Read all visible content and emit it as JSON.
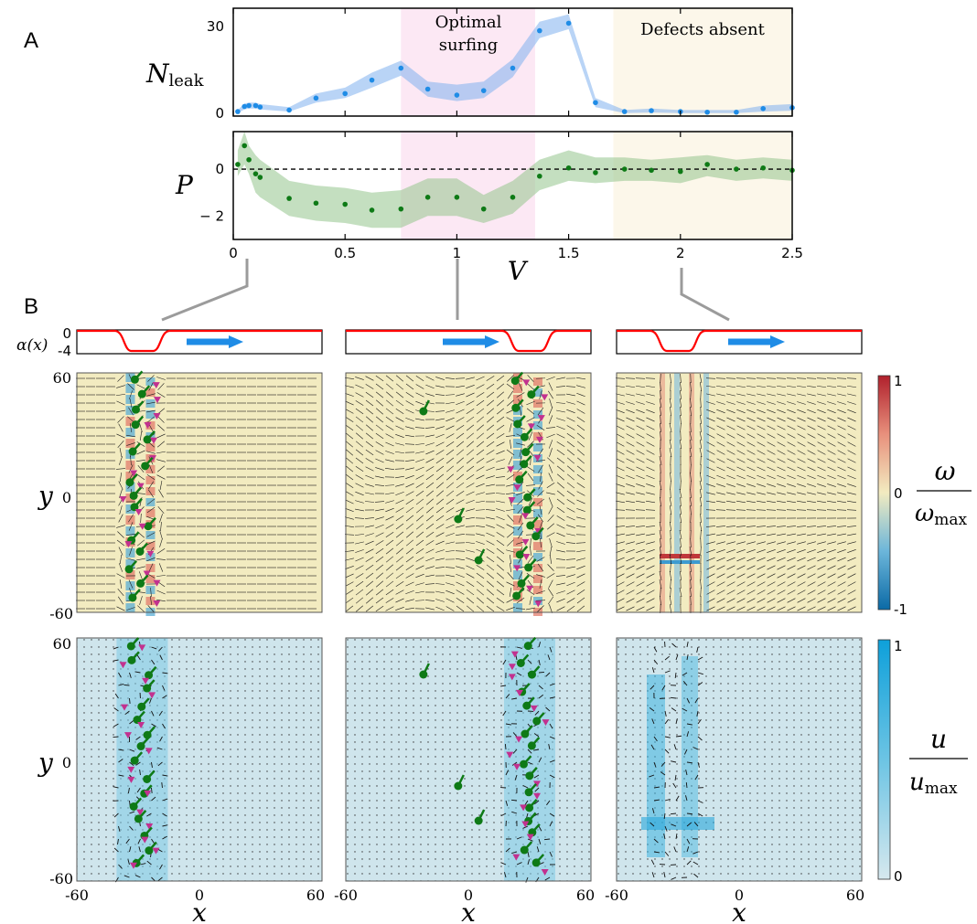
{
  "panel_labels": {
    "a": "A",
    "b": "B"
  },
  "chart_data": [
    {
      "type": "scatter",
      "panel": "A-top",
      "ylabel_main": "N",
      "ylabel_sub": "leak",
      "ylim": [
        -1,
        35
      ],
      "yticks": [
        "0",
        "30"
      ],
      "point_color": "#1f8ce6",
      "band_color": "#7fb0ee",
      "x": [
        0.02,
        0.05,
        0.07,
        0.1,
        0.12,
        0.25,
        0.37,
        0.5,
        0.62,
        0.75,
        0.87,
        1.0,
        1.12,
        1.25,
        1.37,
        1.5,
        1.62,
        1.75,
        1.87,
        2.0,
        2.12,
        2.25,
        2.37,
        2.5
      ],
      "y": [
        0.5,
        2.2,
        2.5,
        2.5,
        2.0,
        1.0,
        5.0,
        6.5,
        11.0,
        15.0,
        8.0,
        6.0,
        7.5,
        15.0,
        27.5,
        30.0,
        3.5,
        0.5,
        0.8,
        0.5,
        0.3,
        0.3,
        1.5,
        1.8
      ],
      "band_low": [
        0.0,
        1.2,
        1.5,
        1.5,
        1.2,
        0.5,
        3.5,
        5.0,
        8.5,
        12.5,
        5.5,
        4.0,
        5.0,
        12.0,
        25.0,
        28.0,
        2.0,
        0.0,
        0.2,
        0.0,
        0.0,
        0.0,
        0.5,
        0.8
      ],
      "band_high": [
        1.0,
        3.2,
        3.5,
        3.5,
        3.0,
        2.0,
        6.5,
        8.5,
        13.5,
        17.5,
        10.5,
        9.5,
        10.5,
        18.0,
        30.5,
        33.0,
        5.0,
        1.0,
        1.5,
        1.0,
        1.0,
        1.0,
        2.5,
        3.0
      ],
      "regions": [
        {
          "label_line1": "Optimal",
          "label_line2": "surfing",
          "x0": 0.75,
          "x1": 1.35,
          "color": "#fce8f4"
        },
        {
          "label_line1": "Defects absent",
          "label_line2": "",
          "x0": 1.7,
          "x1": 2.5,
          "color": "#fcf7ea"
        }
      ]
    },
    {
      "type": "scatter",
      "panel": "A-bottom",
      "ylabel": "P",
      "ylim": [
        -3,
        1.6
      ],
      "yticks": [
        "0",
        "− 2"
      ],
      "reference_line": 0,
      "point_color": "#0e7a16",
      "band_color": "#93c48c",
      "x": [
        0.02,
        0.05,
        0.07,
        0.1,
        0.12,
        0.25,
        0.37,
        0.5,
        0.62,
        0.75,
        0.87,
        1.0,
        1.12,
        1.25,
        1.37,
        1.5,
        1.62,
        1.75,
        1.87,
        2.0,
        2.12,
        2.25,
        2.37,
        2.5
      ],
      "y": [
        0.2,
        1.0,
        0.4,
        -0.2,
        -0.35,
        -1.25,
        -1.45,
        -1.5,
        -1.75,
        -1.7,
        -1.2,
        -1.2,
        -1.7,
        -1.2,
        -0.3,
        0.05,
        -0.15,
        0.0,
        -0.05,
        -0.1,
        0.2,
        0.0,
        0.05,
        -0.05
      ],
      "band_low": [
        -0.3,
        0.2,
        -0.2,
        -1.0,
        -1.2,
        -2.0,
        -2.2,
        -2.3,
        -2.5,
        -2.5,
        -2.0,
        -2.0,
        -2.3,
        -1.9,
        -0.9,
        -0.5,
        -0.6,
        -0.5,
        -0.5,
        -0.6,
        -0.3,
        -0.5,
        -0.4,
        -0.5
      ],
      "band_high": [
        0.8,
        1.6,
        1.0,
        0.6,
        0.4,
        -0.5,
        -0.7,
        -0.8,
        -1.0,
        -0.9,
        -0.4,
        -0.4,
        -1.1,
        -0.5,
        0.4,
        0.8,
        0.5,
        0.5,
        0.4,
        0.5,
        0.6,
        0.4,
        0.5,
        0.4
      ],
      "xlabel": "V",
      "xlim": [
        0,
        2.5
      ],
      "xticks": [
        "0",
        "0.5",
        "1",
        "1.5",
        "2",
        "2.5"
      ]
    },
    {
      "type": "heatmap",
      "panel": "B",
      "alpha_label": "α(x)",
      "alpha_ticks": [
        "0",
        "-4"
      ],
      "y_axis_label": "y",
      "x_axis_label": "x",
      "ticks": [
        "-60",
        "0",
        "60"
      ],
      "columns": [
        {
          "V": 0.05,
          "well_center": -28
        },
        {
          "V": 1.0,
          "well_center": 30
        },
        {
          "V": 2.0,
          "well_center": -30
        }
      ],
      "vorticity_colorbar": {
        "label_num": "ω",
        "label_den": "ω",
        "label_den_sub": "max",
        "ticks": [
          "1",
          "0",
          "-1"
        ]
      },
      "velocity_colorbar": {
        "label_num": "u",
        "label_den": "u",
        "label_den_sub": "max",
        "ticks": [
          "1",
          "0"
        ]
      },
      "colors": {
        "frame": "#000000",
        "alpha_curve": "#ff0000",
        "arrow": "#1f8ce6",
        "defect_plus": "#0e7a16",
        "defect_minus": "#c2318f",
        "omega_bg": "#f2ebc0",
        "u_bg": "#cfe5ec"
      }
    }
  ]
}
